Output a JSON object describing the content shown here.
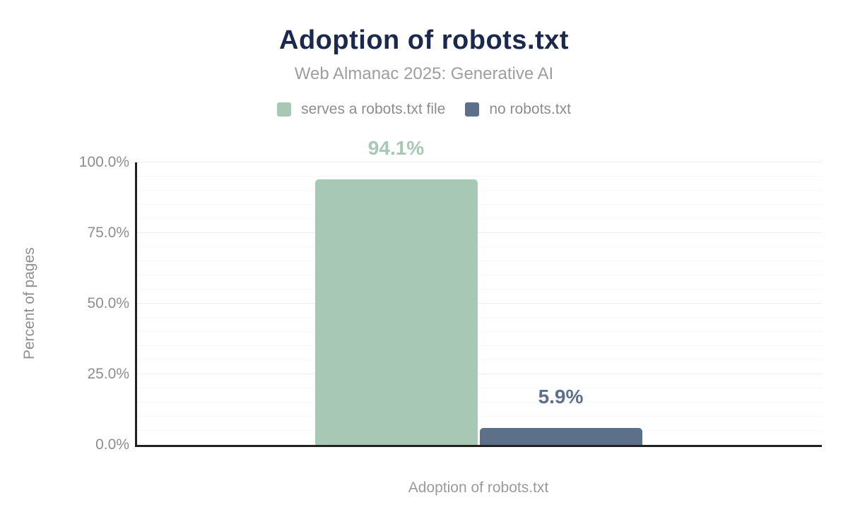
{
  "chart_data": {
    "type": "bar",
    "title": "Adoption of robots.txt",
    "subtitle": "Web Almanac 2025: Generative AI",
    "xlabel": "Adoption of robots.txt",
    "ylabel": "Percent of pages",
    "categories": [
      "Adoption of robots.txt"
    ],
    "series": [
      {
        "name": "serves a robots.txt file",
        "value": 94.1,
        "label": "94.1%",
        "color": "#a7c8b4"
      },
      {
        "name": "no robots.txt",
        "value": 5.9,
        "label": "5.9%",
        "color": "#5d7089"
      }
    ],
    "ylim": [
      0,
      100
    ],
    "yticks": [
      "0.0%",
      "25.0%",
      "50.0%",
      "75.0%",
      "100.0%"
    ],
    "ytick_step_minor": 5,
    "ytick_step_major": 25,
    "grid": "on",
    "legend_position": "top"
  },
  "colors": {
    "title": "#1a294c",
    "subtitle": "#9e9e9e",
    "axis_text": "#8d8d8d",
    "axis_line": "#212121",
    "grid_minor": "#f7f7f7",
    "grid_major": "#ededed"
  }
}
